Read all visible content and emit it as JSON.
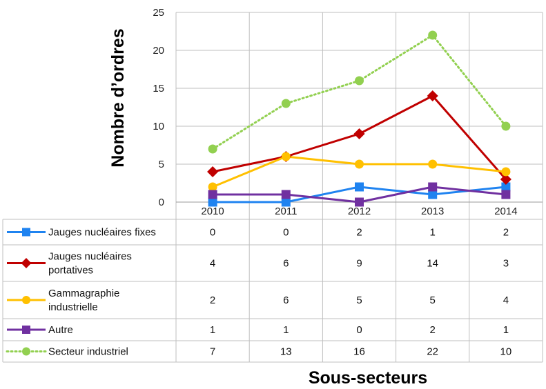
{
  "chart_data": {
    "type": "line",
    "title": "",
    "xlabel": "Sous-secteurs",
    "ylabel": "Nombre d’ordres",
    "ylim": [
      0,
      25
    ],
    "yticks": [
      0,
      5,
      10,
      15,
      20,
      25
    ],
    "grid": true,
    "legend": "data-table-left",
    "categories": [
      "2010",
      "2011",
      "2012",
      "2013",
      "2014"
    ],
    "series": [
      {
        "name": "Jauges nucléaires fixes",
        "name_lines": [
          "Jauges nucléaires fixes"
        ],
        "values": [
          0,
          0,
          2,
          1,
          2
        ],
        "color": "#1F83F0",
        "marker": "square",
        "dashed": false
      },
      {
        "name": "Jauges nucléaires portatives",
        "name_lines": [
          "Jauges nucléaires",
          "portatives"
        ],
        "values": [
          4,
          6,
          9,
          14,
          3
        ],
        "color": "#C00000",
        "marker": "diamond",
        "dashed": false
      },
      {
        "name": "Gammagraphie industrielle",
        "name_lines": [
          "Gammagraphie",
          "industrielle"
        ],
        "values": [
          2,
          6,
          5,
          5,
          4
        ],
        "color": "#FFC000",
        "marker": "circle",
        "dashed": false
      },
      {
        "name": "Autre",
        "name_lines": [
          "Autre"
        ],
        "values": [
          1,
          1,
          0,
          2,
          1
        ],
        "color": "#7030A0",
        "marker": "square",
        "dashed": false
      },
      {
        "name": "Secteur industriel",
        "name_lines": [
          "Secteur industriel"
        ],
        "values": [
          7,
          13,
          16,
          22,
          10
        ],
        "color": "#92D050",
        "marker": "circle",
        "dashed": true
      }
    ]
  }
}
